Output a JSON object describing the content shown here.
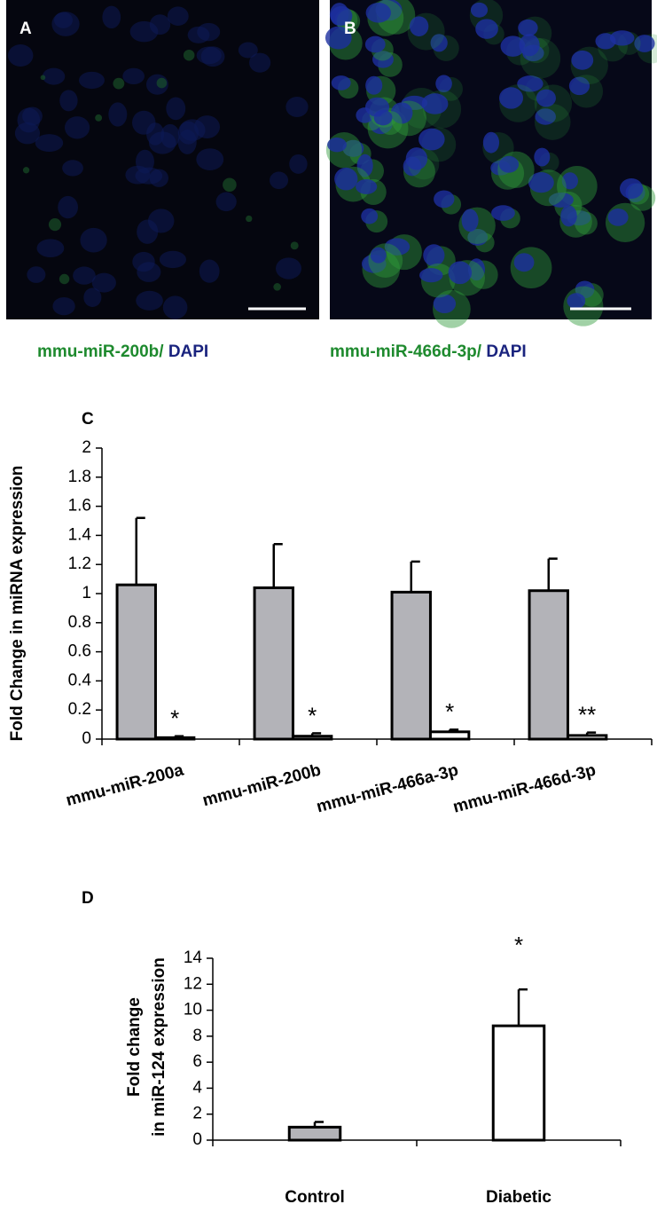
{
  "panel_a": {
    "label": "A",
    "caption_green": "mmu-miR-200b/",
    "caption_blue": "DAPI"
  },
  "panel_b": {
    "label": "B",
    "caption_green": "mmu-miR-466d-3p/",
    "caption_blue": "DAPI"
  },
  "chart_data": [
    {
      "type": "bar",
      "panel_label": "C",
      "ylabel": [
        "Fold Change  in miRNA expression"
      ],
      "categories": [
        "mmu-miR-200a",
        "mmu-miR-200b",
        "mmu-miR-466a-3p",
        "mmu-miR-466d-3p"
      ],
      "series": [
        {
          "color": "#b3b3b8",
          "values": [
            1.06,
            1.04,
            1.01,
            1.02
          ],
          "errors": [
            0.46,
            0.3,
            0.21,
            0.22
          ]
        },
        {
          "color": "#ffffff",
          "values": [
            0.01,
            0.02,
            0.05,
            0.025
          ],
          "errors": [
            0.01,
            0.02,
            0.015,
            0.02
          ]
        }
      ],
      "annotations": [
        "*",
        "*",
        "*",
        "**"
      ],
      "ylim": [
        0,
        2
      ],
      "yticks": [
        0,
        0.2,
        0.4,
        0.6,
        0.8,
        1,
        1.2,
        1.4,
        1.6,
        1.8,
        2
      ]
    },
    {
      "type": "bar",
      "panel_label": "D",
      "ylabel": [
        "Fold change",
        "in miR-124 expression"
      ],
      "categories": [
        "Control",
        "Diabetic"
      ],
      "series": [
        {
          "colors": [
            "#b3b3b8",
            "#ffffff"
          ],
          "values": [
            1.0,
            8.8
          ],
          "errors": [
            0.4,
            2.8
          ]
        }
      ],
      "annotations": [
        null,
        "*"
      ],
      "ylim": [
        0,
        14
      ],
      "yticks": [
        0,
        2,
        4,
        6,
        8,
        10,
        12,
        14
      ]
    }
  ]
}
